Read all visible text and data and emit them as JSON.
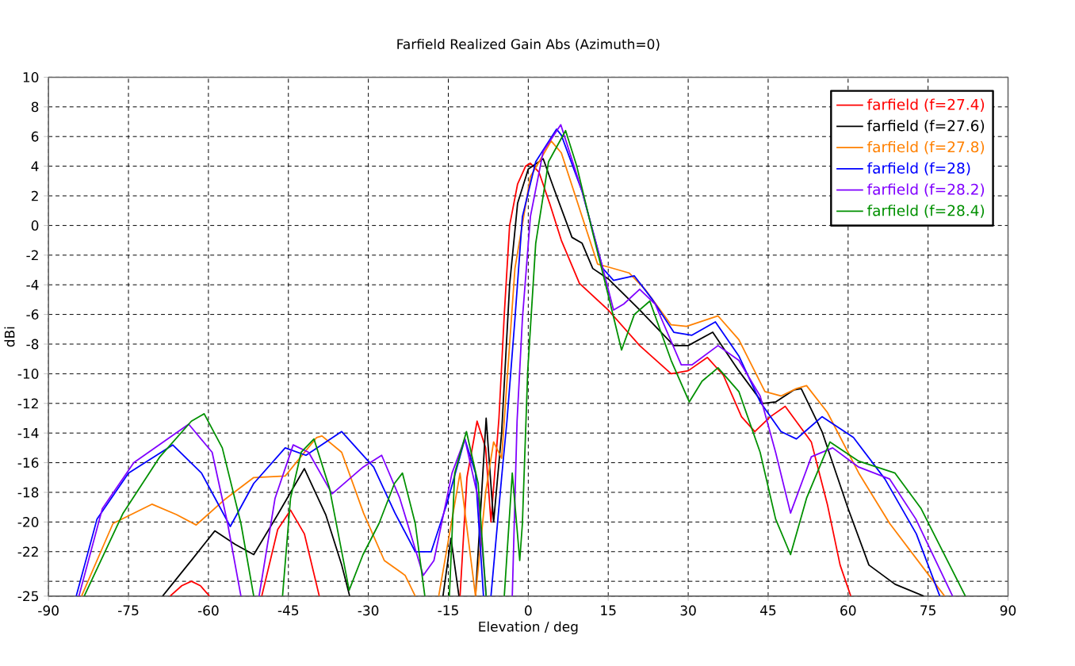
{
  "chart_data": {
    "type": "line",
    "title": "Farfield Realized Gain Abs (Azimuth=0)",
    "xlabel": "Elevation / deg",
    "ylabel": "dBi",
    "xlim": [
      -90,
      90
    ],
    "xticks": [
      -90,
      -75,
      -60,
      -45,
      -30,
      -15,
      0,
      15,
      30,
      45,
      60,
      75,
      90
    ],
    "ylim": [
      -25,
      10
    ],
    "yticks": [
      10,
      8,
      6,
      4,
      2,
      0,
      -2,
      -4,
      -6,
      -8,
      -10,
      -12,
      -14,
      -16,
      -18,
      -20,
      -22,
      {
        "value": -24,
        "label": null
      },
      -25
    ],
    "grid": true,
    "legend": "top right",
    "series": [
      {
        "name": "farfield (f=27.4)",
        "color": "#ff0000",
        "x": [
          -67.2,
          -65,
          -63.2,
          -61.5,
          -59.8,
          -55,
          -50,
          -47,
          -44.6,
          -42,
          -39.2,
          -25,
          -12.8,
          -11.5,
          -9.6,
          -8,
          -7,
          -5.5,
          -4.5,
          -3.5,
          -2,
          -0.5,
          0.4,
          2,
          4,
          6.2,
          9.6,
          15,
          20.9,
          26.8,
          30,
          33.6,
          36.6,
          40,
          42.5,
          45.4,
          48.2,
          53.1,
          56.1,
          58.5,
          60.5
        ],
        "values": [
          -25,
          -24.3,
          -24,
          -24.3,
          -25,
          null,
          -25,
          -20.5,
          -19.2,
          -20.8,
          -25,
          null,
          -25,
          -17,
          -13.2,
          -15,
          -20,
          -13,
          -6,
          0,
          2.8,
          4,
          4.2,
          3.6,
          1.5,
          -1,
          -3.9,
          -5.7,
          -8.1,
          -10,
          -9.8,
          -8.9,
          -10.1,
          -12.9,
          -13.9,
          -12.9,
          -12.2,
          -14.6,
          -18.8,
          -22.9,
          -25
        ]
      },
      {
        "name": "farfield (f=27.6)",
        "color": "#000000",
        "x": [
          -68.6,
          -63,
          -58.8,
          -55,
          -51.5,
          -47,
          -42,
          -38,
          -35,
          -33.5,
          -20,
          -16,
          -14.5,
          -13,
          -10,
          -9.9,
          -7.9,
          -6.5,
          -5,
          -3.5,
          -2,
          0,
          2.8,
          4.9,
          8.2,
          10.1,
          12.1,
          15,
          20.9,
          27.3,
          30,
          34.6,
          39.5,
          44,
          46.4,
          49.8,
          51.2,
          55.1,
          60,
          63.9,
          68.8,
          74.2
        ],
        "values": [
          -25,
          -22.5,
          -20.6,
          -21.5,
          -22.2,
          -19.5,
          -16.4,
          -19.5,
          -22.9,
          -25,
          null,
          -25,
          -21.1,
          -25,
          null,
          -25,
          -13,
          -20,
          -14,
          -4,
          1.5,
          3.8,
          4.5,
          2.4,
          -0.8,
          -1.2,
          -2.9,
          -3.6,
          -5.7,
          -8.1,
          -8.1,
          -7.2,
          -9.8,
          -12,
          -11.9,
          -11.1,
          -11,
          -13.9,
          -19.1,
          -22.9,
          -24.2,
          -25
        ]
      },
      {
        "name": "farfield (f=27.8)",
        "color": "#ff8000",
        "x": [
          -83.8,
          -77.9,
          -70.6,
          -66,
          -62.3,
          -57,
          -51.5,
          -45.6,
          -39.7,
          -38.7,
          -35,
          -30.9,
          -27,
          -23.1,
          -21.2,
          -17,
          -16.8,
          -12.8,
          -9.9,
          -8,
          -6.5,
          -5,
          -2.5,
          0.4,
          4.3,
          6.2,
          10.1,
          13,
          15,
          18.9,
          21.9,
          26.8,
          29.7,
          35.6,
          39.5,
          44.4,
          47.4,
          50.3,
          52.2,
          56.1,
          62,
          67.8,
          73.7,
          78.1
        ],
        "values": [
          -25,
          -20.1,
          -18.8,
          -19.5,
          -20.2,
          -18.5,
          -17,
          -16.9,
          -14.3,
          -14.2,
          -15.3,
          -19.4,
          -22.6,
          -23.6,
          -25,
          null,
          -25,
          -16.7,
          -25,
          -18,
          -14.6,
          -15.7,
          -2.9,
          3.3,
          5.7,
          4.9,
          0.6,
          -2.6,
          -2.8,
          -3.2,
          -4.3,
          -6.7,
          -6.8,
          -6.1,
          -7.7,
          -11.2,
          -11.5,
          -11,
          -10.8,
          -12.6,
          -16.7,
          -20.1,
          -22.9,
          -25
        ]
      },
      {
        "name": "farfield (f=28)",
        "color": "#0000ff",
        "x": [
          -84.8,
          -80.9,
          -75,
          -66.7,
          -61.3,
          -55.9,
          -51.5,
          -45.6,
          -41.7,
          -35,
          -29,
          -25,
          -21.2,
          -18.2,
          -15.3,
          -11.9,
          -9.9,
          -8.4,
          -7.5,
          -7,
          -5,
          -4,
          -2.5,
          -1.1,
          1.4,
          5.3,
          6.2,
          10.1,
          14,
          16,
          19.9,
          23.3,
          27.3,
          30.7,
          35.1,
          39.5,
          43.5,
          47.4,
          50.3,
          55.1,
          61,
          66.9,
          72.8,
          77.2
        ],
        "values": [
          -25,
          -19.8,
          -16.7,
          -14.8,
          -16.7,
          -20.3,
          -17.4,
          -15,
          -15.5,
          -13.9,
          -16.3,
          -19.4,
          -22,
          -22,
          -18.8,
          -14.4,
          -16.7,
          -25,
          null,
          -25,
          -17,
          -13.2,
          -6.3,
          0.6,
          4.3,
          6.5,
          6.1,
          2.3,
          -2.9,
          -3.7,
          -3.4,
          -5,
          -7.2,
          -7.4,
          -6.5,
          -8.8,
          -11.9,
          -13.9,
          -14.4,
          -12.9,
          -14.3,
          -17.1,
          -20.8,
          -25
        ]
      },
      {
        "name": "farfield (f=28.2)",
        "color": "#8000ff",
        "x": [
          -84.3,
          -79.9,
          -74,
          -63.7,
          -59.3,
          -56.4,
          -53.9,
          -52,
          -50.5,
          -47.5,
          -44.1,
          -41.2,
          -36.8,
          -31,
          -27.5,
          -24.1,
          -19.7,
          -17.7,
          -14.3,
          -11.9,
          -9.4,
          -7.9,
          -5,
          -3,
          -2.1,
          -1.1,
          0.4,
          2.8,
          6.1,
          10.1,
          14,
          16,
          17.9,
          20.9,
          23.8,
          28.7,
          30.7,
          35.6,
          39.5,
          43.5,
          46.4,
          49.2,
          53.1,
          57.1,
          62,
          67.8,
          72.7,
          79.6
        ],
        "values": [
          -25,
          -19.1,
          -16,
          -13.4,
          -15.3,
          -20.1,
          -25,
          null,
          -25,
          -18.4,
          -14.8,
          -15.3,
          -18.1,
          -16.3,
          -15.5,
          -18.4,
          -23.6,
          -22.6,
          -16.7,
          -14.4,
          -18.4,
          -25,
          null,
          -25,
          -13.2,
          -6.3,
          0.6,
          5,
          6.8,
          2.3,
          -2.9,
          -5.7,
          -5.3,
          -4.3,
          -5.3,
          -9.4,
          -9.4,
          -8.1,
          -9.1,
          -11.5,
          -15.3,
          -19.4,
          -15.6,
          -15,
          -16.3,
          -17.1,
          -19.8,
          -25
        ]
      },
      {
        "name": "farfield (f=28.4)",
        "color": "#009000",
        "x": [
          -83.3,
          -76,
          -69.1,
          -63.2,
          -60.8,
          -57.4,
          -53.9,
          -51.5,
          -49,
          -46.1,
          -44.6,
          -42.6,
          -40.2,
          -37.3,
          -33.6,
          -31,
          -28,
          -25.1,
          -23.6,
          -21.2,
          -19.4,
          -17,
          -14.8,
          -13.8,
          -11.6,
          -9.4,
          -7.9,
          -6,
          -4.5,
          -3,
          -1.6,
          -1.1,
          -0.1,
          1.4,
          3.8,
          7,
          9.1,
          12.1,
          15,
          17.5,
          19.9,
          22.8,
          26.8,
          30.2,
          32.6,
          35.6,
          39.5,
          43.5,
          46.4,
          49.2,
          52.2,
          56.6,
          62,
          68.8,
          73.7,
          82
        ],
        "values": [
          -25,
          -19.4,
          -15.6,
          -13.2,
          -12.7,
          -15,
          -20.1,
          -25,
          null,
          -25,
          -18.4,
          -15.3,
          -14.4,
          -17.7,
          -24.6,
          -22.2,
          -20.1,
          -17.4,
          -16.7,
          -20.1,
          -25,
          null,
          -25,
          -16.7,
          -13.9,
          -17.4,
          -25,
          null,
          -25,
          -16.7,
          -22.6,
          -20.1,
          -9.8,
          -1.2,
          4.3,
          6.4,
          4,
          -0.5,
          -4.7,
          -8.4,
          -6,
          -5.1,
          -9.1,
          -11.9,
          -10.5,
          -9.6,
          -11.2,
          -15.3,
          -19.8,
          -22.2,
          -18.4,
          -14.6,
          -15.9,
          -16.7,
          -19.1,
          -25
        ]
      }
    ]
  }
}
